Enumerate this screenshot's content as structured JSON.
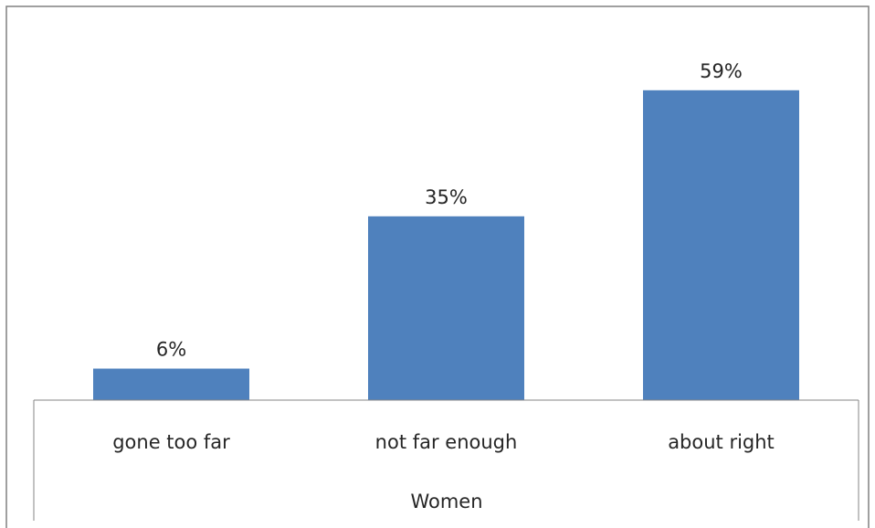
{
  "chart_data": {
    "type": "bar",
    "title": "",
    "xlabel": "Women",
    "ylabel": "",
    "categories": [
      "gone too far",
      "not far enough",
      "about right"
    ],
    "values": [
      6,
      35,
      59
    ],
    "data_labels": [
      "6%",
      "35%",
      "59%"
    ],
    "ylim": [
      0,
      65
    ],
    "grid": false,
    "legend": "none",
    "bar_color": "#4F81BD",
    "frame_color": "#808080",
    "axis_color": "#868686"
  }
}
